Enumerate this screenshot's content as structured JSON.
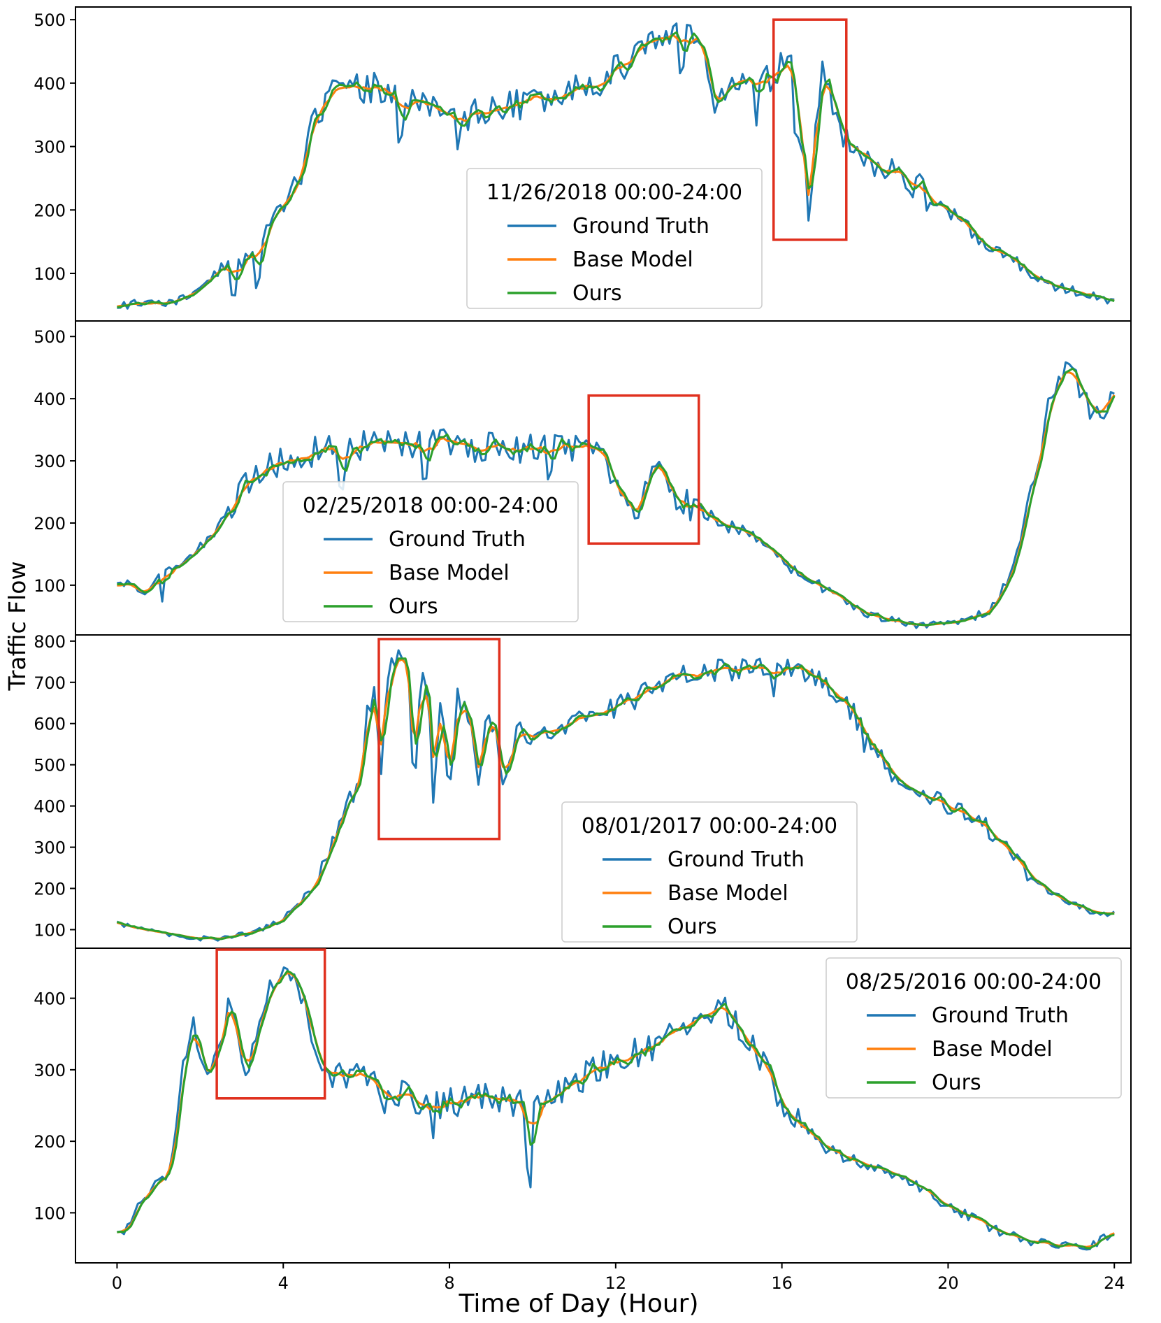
{
  "figure": {
    "ylabel": "Traffic Flow",
    "xlabel": "Time of Day (Hour)",
    "xlim": [
      -1,
      24.4
    ],
    "xticks": [
      0,
      4,
      8,
      12,
      16,
      20,
      24
    ],
    "series_names": [
      "Ground Truth",
      "Base Model",
      "Ours"
    ],
    "colors": {
      "Ground Truth": "#1f77b4",
      "Base Model": "#ff7f0e",
      "Ours": "#2ca02c",
      "highlight": "#e0301e"
    }
  },
  "chart_data": [
    {
      "type": "line",
      "title": "11/26/2018 00:00-24:00",
      "ylim": [
        25,
        520
      ],
      "yticks": [
        100,
        200,
        300,
        400,
        500
      ],
      "legend_position": "center",
      "highlight": {
        "x": [
          15.8,
          17.55
        ],
        "y": [
          153,
          500
        ]
      },
      "xlabel": "Time of Day (Hour)",
      "ylabel": "Traffic Flow",
      "knots": [
        [
          0,
          50
        ],
        [
          0.5,
          52
        ],
        [
          1,
          50
        ],
        [
          1.5,
          58
        ],
        [
          2,
          75
        ],
        [
          2.5,
          108
        ],
        [
          3,
          115
        ],
        [
          3.5,
          160
        ],
        [
          4,
          210
        ],
        [
          4.3,
          230
        ],
        [
          4.7,
          330
        ],
        [
          5,
          375
        ],
        [
          5.5,
          385
        ],
        [
          6,
          395
        ],
        [
          6.5,
          390
        ],
        [
          7,
          375
        ],
        [
          7.5,
          365
        ],
        [
          8,
          345
        ],
        [
          8.5,
          352
        ],
        [
          9,
          358
        ],
        [
          9.5,
          365
        ],
        [
          10,
          370
        ],
        [
          10.5,
          375
        ],
        [
          11,
          385
        ],
        [
          11.5,
          400
        ],
        [
          12,
          420
        ],
        [
          12.5,
          450
        ],
        [
          13,
          470
        ],
        [
          13.5,
          475
        ],
        [
          14,
          465
        ],
        [
          14.2,
          430
        ],
        [
          14.4,
          360
        ],
        [
          14.8,
          400
        ],
        [
          15.2,
          410
        ],
        [
          15.7,
          410
        ],
        [
          16,
          425
        ],
        [
          16.3,
          420
        ],
        [
          16.55,
          260
        ],
        [
          16.65,
          170
        ],
        [
          16.8,
          350
        ],
        [
          17,
          420
        ],
        [
          17.3,
          360
        ],
        [
          17.6,
          300
        ],
        [
          18,
          290
        ],
        [
          18.5,
          260
        ],
        [
          19,
          255
        ],
        [
          19.5,
          220
        ],
        [
          20,
          200
        ],
        [
          20.5,
          170
        ],
        [
          21,
          140
        ],
        [
          21.5,
          125
        ],
        [
          22,
          100
        ],
        [
          22.5,
          82
        ],
        [
          23,
          72
        ],
        [
          23.5,
          68
        ],
        [
          24,
          55
        ]
      ],
      "noise": [
        12,
        26
      ],
      "dips": [
        [
          2.8,
          55
        ],
        [
          3.4,
          60
        ],
        [
          6.8,
          70
        ],
        [
          8.2,
          60
        ],
        [
          13.6,
          40
        ],
        [
          15.4,
          90
        ],
        [
          16.35,
          70
        ]
      ],
      "seed": 11
    },
    {
      "type": "line",
      "title": "02/25/2018 00:00-24:00",
      "ylim": [
        20,
        525
      ],
      "yticks": [
        100,
        200,
        300,
        400,
        500
      ],
      "legend_position": "center-left",
      "highlight": {
        "x": [
          11.35,
          14.0
        ],
        "y": [
          167,
          405
        ]
      },
      "xlabel": "Time of Day (Hour)",
      "ylabel": "Traffic Flow",
      "knots": [
        [
          0,
          95
        ],
        [
          0.3,
          100
        ],
        [
          0.6,
          85
        ],
        [
          1,
          110
        ],
        [
          1.5,
          130
        ],
        [
          2,
          160
        ],
        [
          2.5,
          200
        ],
        [
          3,
          250
        ],
        [
          3.5,
          285
        ],
        [
          4,
          300
        ],
        [
          4.5,
          312
        ],
        [
          5,
          318
        ],
        [
          5.5,
          320
        ],
        [
          6,
          325
        ],
        [
          7,
          328
        ],
        [
          8,
          328
        ],
        [
          9,
          322
        ],
        [
          10,
          320
        ],
        [
          11,
          320
        ],
        [
          11.5,
          315
        ],
        [
          11.8,
          300
        ],
        [
          12.1,
          240
        ],
        [
          12.5,
          215
        ],
        [
          12.8,
          280
        ],
        [
          13,
          300
        ],
        [
          13.3,
          250
        ],
        [
          13.7,
          230
        ],
        [
          14,
          220
        ],
        [
          14.5,
          200
        ],
        [
          15,
          190
        ],
        [
          15.5,
          170
        ],
        [
          16,
          140
        ],
        [
          16.5,
          115
        ],
        [
          17,
          95
        ],
        [
          17.5,
          75
        ],
        [
          18,
          55
        ],
        [
          18.5,
          45
        ],
        [
          19,
          38
        ],
        [
          19.5,
          35
        ],
        [
          20,
          38
        ],
        [
          20.5,
          45
        ],
        [
          21,
          60
        ],
        [
          21.3,
          90
        ],
        [
          21.6,
          130
        ],
        [
          22,
          250
        ],
        [
          22.4,
          380
        ],
        [
          22.8,
          450
        ],
        [
          23,
          430
        ],
        [
          23.3,
          400
        ],
        [
          23.6,
          375
        ],
        [
          24,
          420
        ]
      ],
      "noise": [
        12,
        24
      ],
      "dips": [
        [
          1.1,
          40
        ],
        [
          5.4,
          45
        ],
        [
          7.4,
          50
        ],
        [
          8.6,
          40
        ],
        [
          10.4,
          45
        ]
      ],
      "seed": 22
    },
    {
      "type": "line",
      "title": "08/01/2017 00:00-24:00",
      "ylim": [
        55,
        815
      ],
      "yticks": [
        100,
        200,
        300,
        400,
        500,
        600,
        700,
        800
      ],
      "legend_position": "bottom-right",
      "highlight": {
        "x": [
          6.3,
          9.2
        ],
        "y": [
          320,
          805
        ]
      },
      "xlabel": "Time of Day (Hour)",
      "ylabel": "Traffic Flow",
      "knots": [
        [
          0,
          115
        ],
        [
          0.5,
          100
        ],
        [
          1,
          92
        ],
        [
          1.5,
          88
        ],
        [
          2,
          80
        ],
        [
          2.5,
          78
        ],
        [
          3,
          88
        ],
        [
          3.5,
          100
        ],
        [
          4,
          125
        ],
        [
          4.3,
          160
        ],
        [
          4.6,
          185
        ],
        [
          5,
          260
        ],
        [
          5.3,
          350
        ],
        [
          5.6,
          420
        ],
        [
          5.8,
          450
        ],
        [
          6,
          620
        ],
        [
          6.2,
          670
        ],
        [
          6.35,
          480
        ],
        [
          6.5,
          720
        ],
        [
          6.8,
          760
        ],
        [
          7,
          745
        ],
        [
          7.15,
          430
        ],
        [
          7.3,
          700
        ],
        [
          7.5,
          710
        ],
        [
          7.6,
          420
        ],
        [
          7.8,
          680
        ],
        [
          8,
          430
        ],
        [
          8.2,
          670
        ],
        [
          8.5,
          610
        ],
        [
          8.7,
          440
        ],
        [
          8.9,
          610
        ],
        [
          9.1,
          600
        ],
        [
          9.3,
          450
        ],
        [
          9.6,
          580
        ],
        [
          10,
          570
        ],
        [
          10.5,
          590
        ],
        [
          11,
          600
        ],
        [
          11.5,
          620
        ],
        [
          12,
          640
        ],
        [
          12.5,
          665
        ],
        [
          13,
          690
        ],
        [
          13.5,
          720
        ],
        [
          14,
          725
        ],
        [
          14.5,
          730
        ],
        [
          15,
          730
        ],
        [
          15.5,
          735
        ],
        [
          16,
          730
        ],
        [
          16.5,
          740
        ],
        [
          17,
          700
        ],
        [
          17.5,
          660
        ],
        [
          18,
          580
        ],
        [
          18.5,
          500
        ],
        [
          19,
          450
        ],
        [
          19.5,
          420
        ],
        [
          20,
          400
        ],
        [
          20.5,
          375
        ],
        [
          21,
          340
        ],
        [
          21.5,
          280
        ],
        [
          22,
          230
        ],
        [
          22.5,
          185
        ],
        [
          23,
          160
        ],
        [
          23.5,
          145
        ],
        [
          24,
          140
        ]
      ],
      "noise": [
        10,
        26
      ],
      "dips": [
        [
          5.9,
          60
        ],
        [
          12.4,
          30
        ],
        [
          15.8,
          45
        ],
        [
          16.6,
          40
        ],
        [
          18.0,
          40
        ]
      ],
      "seed": 33
    },
    {
      "type": "line",
      "title": "08/25/2016 00:00-24:00",
      "ylim": [
        30,
        470
      ],
      "yticks": [
        100,
        200,
        300,
        400
      ],
      "legend_position": "top-right",
      "highlight": {
        "x": [
          2.4,
          5.0
        ],
        "y": [
          260,
          468
        ]
      },
      "xlabel": "Time of Day (Hour)",
      "ylabel": "Traffic Flow",
      "knots": [
        [
          0,
          72
        ],
        [
          0.3,
          80
        ],
        [
          0.6,
          120
        ],
        [
          0.9,
          140
        ],
        [
          1.2,
          150
        ],
        [
          1.4,
          200
        ],
        [
          1.6,
          300
        ],
        [
          1.8,
          360
        ],
        [
          2,
          330
        ],
        [
          2.2,
          280
        ],
        [
          2.5,
          340
        ],
        [
          2.7,
          410
        ],
        [
          3,
          300
        ],
        [
          3.2,
          310
        ],
        [
          3.5,
          380
        ],
        [
          3.8,
          420
        ],
        [
          4.1,
          440
        ],
        [
          4.4,
          420
        ],
        [
          4.7,
          350
        ],
        [
          5,
          300
        ],
        [
          5.5,
          290
        ],
        [
          6,
          285
        ],
        [
          6.5,
          270
        ],
        [
          7,
          260
        ],
        [
          7.5,
          250
        ],
        [
          8,
          255
        ],
        [
          8.5,
          260
        ],
        [
          9,
          262
        ],
        [
          9.5,
          258
        ],
        [
          10,
          240
        ],
        [
          10.5,
          260
        ],
        [
          11,
          280
        ],
        [
          11.5,
          300
        ],
        [
          12,
          310
        ],
        [
          12.5,
          325
        ],
        [
          13,
          335
        ],
        [
          13.5,
          355
        ],
        [
          14,
          375
        ],
        [
          14.5,
          390
        ],
        [
          15,
          360
        ],
        [
          15.5,
          310
        ],
        [
          16,
          255
        ],
        [
          16.5,
          215
        ],
        [
          17,
          195
        ],
        [
          17.5,
          180
        ],
        [
          18,
          170
        ],
        [
          18.5,
          160
        ],
        [
          19,
          150
        ],
        [
          19.5,
          130
        ],
        [
          20,
          110
        ],
        [
          20.5,
          95
        ],
        [
          21,
          80
        ],
        [
          21.5,
          68
        ],
        [
          22,
          60
        ],
        [
          22.5,
          55
        ],
        [
          23,
          52
        ],
        [
          23.5,
          55
        ],
        [
          24,
          75
        ]
      ],
      "noise": [
        10,
        22
      ],
      "dips": [
        [
          9.9,
          95
        ],
        [
          6.4,
          35
        ],
        [
          7.6,
          30
        ],
        [
          11.2,
          35
        ]
      ],
      "seed": 44
    }
  ]
}
